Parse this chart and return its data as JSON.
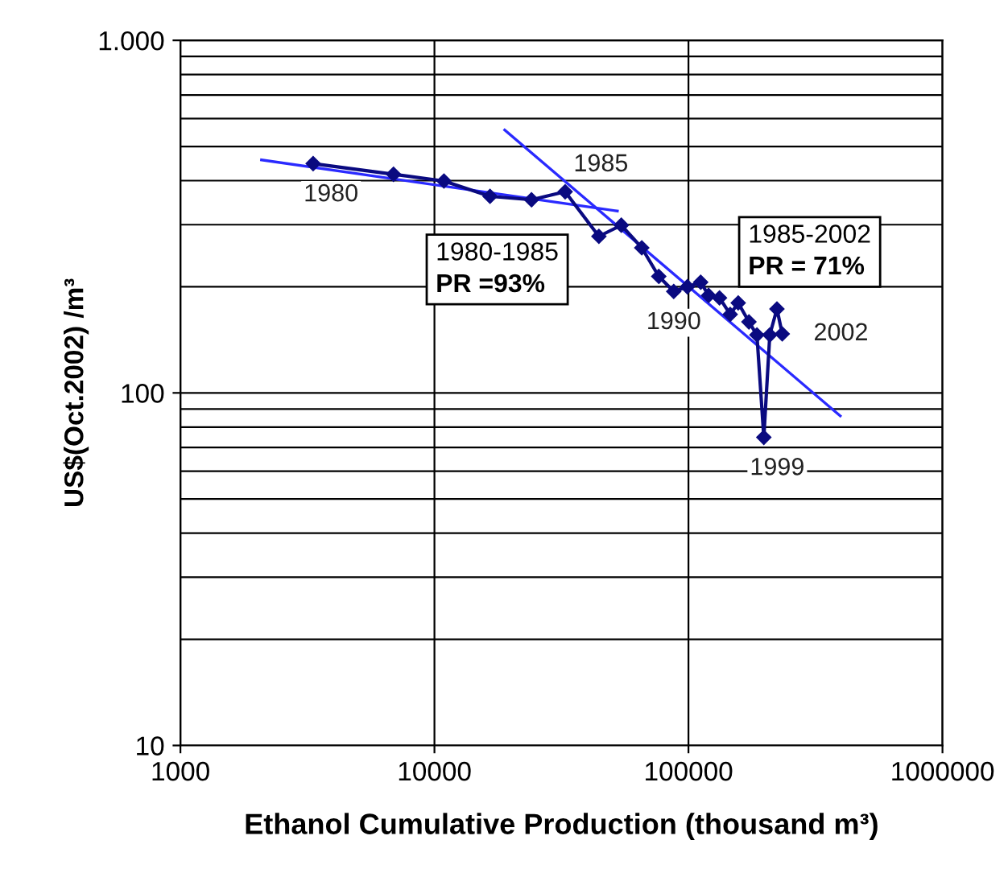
{
  "chart_data": {
    "type": "line",
    "xlabel": "Ethanol Cumulative Production (thousand m³)",
    "ylabel": "US$(Oct.2002) /m³",
    "log": "xy",
    "xlim": [
      1000,
      1000000
    ],
    "xticks": [
      1000,
      10000,
      100000,
      1000000
    ],
    "ylim": [
      10,
      1000
    ],
    "yticks": [
      10,
      100,
      {
        "value": 1000,
        "label": "1.000"
      }
    ],
    "grid": true,
    "series": [
      {
        "color": "#0a0a80",
        "marker": "diamond",
        "line_style": "solid",
        "x": [
          3330,
          6900,
          10900,
          16550,
          24100,
          32700,
          44400,
          54400,
          65500,
          76400,
          87500,
          99000,
          111700,
          120000,
          132500,
          146000,
          157000,
          173000,
          186000,
          198000,
          209000,
          223000,
          234000
        ],
        "values": [
          447,
          417,
          399,
          361,
          353,
          372,
          278,
          299,
          258,
          214,
          194,
          200,
          206,
          189,
          186,
          167,
          180,
          159,
          146,
          74.8,
          146,
          173,
          147
        ]
      },
      {
        "color": "#2a2aff",
        "marker": "none",
        "line_style": "solid",
        "x": [
          2085,
          52500
        ],
        "values": [
          458,
          328
        ]
      },
      {
        "color": "#2a2aff",
        "marker": "none",
        "line_style": "solid",
        "x": [
          18900,
          396000
        ],
        "values": [
          557,
          86
        ]
      }
    ],
    "annotations": [
      {
        "text": "1980",
        "x": 3330,
        "y": 447
      },
      {
        "text": "1985",
        "x": 32700,
        "y": 372
      },
      {
        "text": "1990",
        "x": 87500,
        "y": 194
      },
      {
        "text": "1999",
        "x": 198000,
        "y": 74.8
      },
      {
        "text": "2002",
        "x": 234000,
        "y": 147
      },
      "1980-1985\nPR =93%",
      "1985-2002\nPR = 71%"
    ]
  }
}
